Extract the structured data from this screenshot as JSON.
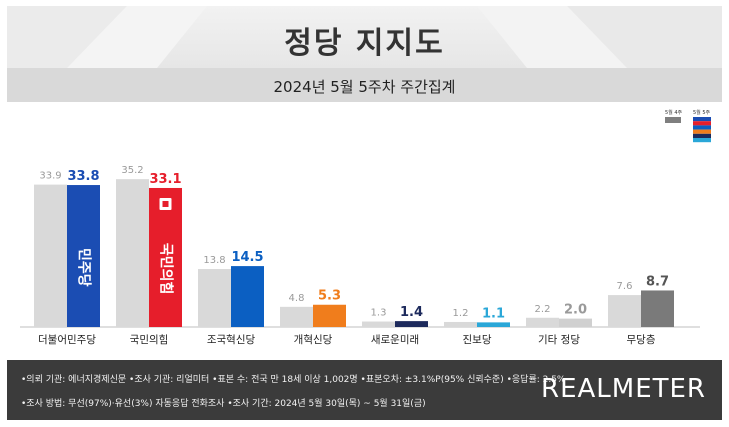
{
  "header": {
    "title": "정당 지지도",
    "subtitle": "2024년 5월 5주차 주간집계"
  },
  "legend": {
    "prev_label": "5월 4주",
    "curr_label": "5월 5주"
  },
  "badges": {
    "democratic": "민주당",
    "ppp": "국민의힘"
  },
  "footer": {
    "line1": "•의뢰 기관: 에너지경제신문 •조사 기관: 리얼미터 •표본 수: 전국 만 18세 이상 1,002명 •표본오차: ±3.1%P(95% 신뢰수준) •응답률: 2.5%",
    "line2": "•조사 방법: 무선(97%)·유선(3%) 자동응답 전화조사 •조사 기간: 2024년 5월 30일(목) ~ 5월 31일(금)",
    "brand": "REALMETER"
  },
  "chart_data": {
    "type": "bar",
    "categories": [
      "더불어민주당",
      "국민의힘",
      "조국혁신당",
      "개혁신당",
      "새로운미래",
      "진보당",
      "기타 정당",
      "무당층"
    ],
    "series": [
      {
        "name": "5월 4주",
        "values": [
          33.9,
          35.2,
          13.8,
          4.8,
          1.3,
          1.2,
          2.2,
          7.6
        ]
      },
      {
        "name": "5월 5주",
        "values": [
          33.8,
          33.1,
          14.5,
          5.3,
          1.4,
          1.1,
          2.0,
          8.7
        ]
      }
    ],
    "current_colors": [
      "#1b4db3",
      "#e61e2b",
      "#0b5fc2",
      "#f07d1c",
      "#1d2a5c",
      "#2aa7d8",
      "#d0d0d0",
      "#7a7a7a"
    ],
    "current_label_colors": [
      "#1b4db3",
      "#e61e2b",
      "#0b5fc2",
      "#f07d1c",
      "#1d2a5c",
      "#2aa7d8",
      "#9a9a9a",
      "#555555"
    ],
    "prev_color": "#d9d9d9",
    "ylim": [
      0,
      40
    ],
    "grid": false
  }
}
